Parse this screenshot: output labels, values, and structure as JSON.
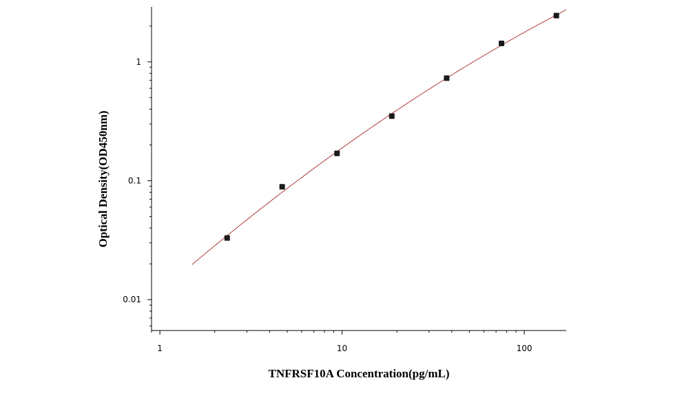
{
  "chart_data": {
    "type": "scatter",
    "title": "",
    "xlabel": "TNFRSF10A Concentration(pg/mL)",
    "ylabel": "Optical Density(OD450nm)",
    "xscale": "log",
    "yscale": "log",
    "xlim": [
      0.9,
      170
    ],
    "ylim": [
      0.0055,
      2.9
    ],
    "xticks": [
      {
        "value": 1,
        "label": "1"
      },
      {
        "value": 10,
        "label": "10"
      },
      {
        "value": 100,
        "label": "100"
      }
    ],
    "yticks": [
      {
        "value": 0.01,
        "label": "0.01"
      },
      {
        "value": 0.1,
        "label": "0.1"
      },
      {
        "value": 1,
        "label": "1"
      }
    ],
    "points": {
      "x": [
        2.34,
        4.69,
        9.38,
        18.75,
        37.5,
        75,
        150
      ],
      "y": [
        0.033,
        0.089,
        0.17,
        0.35,
        0.73,
        1.43,
        2.45
      ]
    },
    "fit_curve": {
      "x_range": [
        1.5,
        170
      ]
    },
    "grid": false,
    "legend": "none",
    "colors": {
      "marker": "#1a1a1a",
      "curve": "#b03a3a",
      "axis": "#000000"
    }
  }
}
